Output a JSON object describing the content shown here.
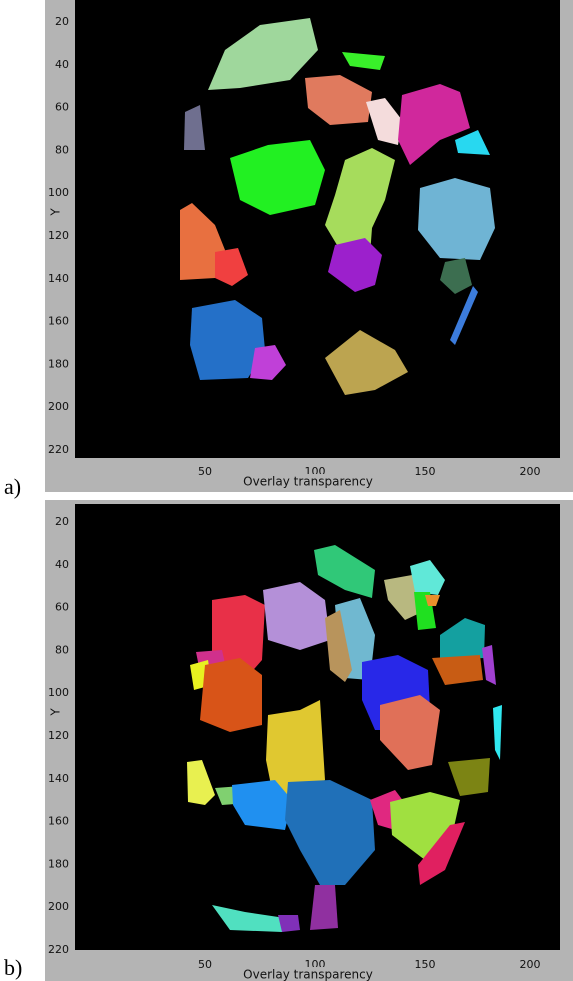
{
  "panels": [
    {
      "label": "a)",
      "y_axis_label": "Y",
      "yticks": [
        20,
        40,
        60,
        80,
        100,
        120,
        140,
        160,
        180,
        200,
        220
      ],
      "xticks": [
        50,
        100,
        150,
        200
      ],
      "x_axis_label": "Overlay transparency"
    },
    {
      "label": "b)",
      "y_axis_label": "Y",
      "yticks": [
        20,
        40,
        60,
        80,
        100,
        120,
        140,
        160,
        180,
        200,
        220
      ],
      "xticks": [
        50,
        100,
        150,
        200
      ],
      "x_axis_label": "Overlay transparency"
    }
  ]
}
